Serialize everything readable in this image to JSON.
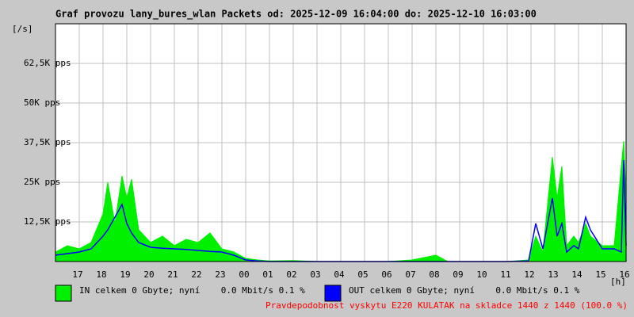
{
  "chart_data": {
    "type": "area",
    "title": "Graf provozu lany_bures_wlan Packets od: 2025-12-09 16:04:00 do: 2025-12-10 16:03:00",
    "y_unit": "[/s]",
    "x_unit": "[h]",
    "xlim": [
      0,
      24
    ],
    "xticks": [
      {
        "value": 1,
        "label": "17"
      },
      {
        "value": 2,
        "label": "18"
      },
      {
        "value": 3,
        "label": "19"
      },
      {
        "value": 4,
        "label": "20"
      },
      {
        "value": 5,
        "label": "21"
      },
      {
        "value": 6,
        "label": "22"
      },
      {
        "value": 7,
        "label": "23"
      },
      {
        "value": 8,
        "label": "00"
      },
      {
        "value": 9,
        "label": "01"
      },
      {
        "value": 10,
        "label": "02"
      },
      {
        "value": 11,
        "label": "03"
      },
      {
        "value": 12,
        "label": "04"
      },
      {
        "value": 13,
        "label": "05"
      },
      {
        "value": 14,
        "label": "06"
      },
      {
        "value": 15,
        "label": "07"
      },
      {
        "value": 16,
        "label": "08"
      },
      {
        "value": 17,
        "label": "09"
      },
      {
        "value": 18,
        "label": "10"
      },
      {
        "value": 19,
        "label": "11"
      },
      {
        "value": 20,
        "label": "12"
      },
      {
        "value": 21,
        "label": "13"
      },
      {
        "value": 22,
        "label": "14"
      },
      {
        "value": 23,
        "label": "15"
      },
      {
        "value": 24,
        "label": "16"
      }
    ],
    "ylim": [
      0,
      75000
    ],
    "yticks": [
      {
        "value": 12500,
        "label": "12,5K pps"
      },
      {
        "value": 25000,
        "label": "25K pps"
      },
      {
        "value": 37500,
        "label": "37,5K pps"
      },
      {
        "value": 50000,
        "label": "50K pps"
      },
      {
        "value": 62500,
        "label": "62,5K pps"
      }
    ],
    "grid": true,
    "x": [
      0,
      0.5,
      1,
      1.5,
      2,
      2.2,
      2.5,
      2.8,
      3,
      3.2,
      3.5,
      4,
      4.5,
      5,
      5.5,
      6,
      6.5,
      7,
      7.5,
      8,
      8.5,
      9,
      10,
      11,
      12,
      13,
      14,
      15,
      16,
      16.5,
      17,
      18,
      19,
      19.9,
      20.2,
      20.5,
      20.9,
      21.1,
      21.3,
      21.5,
      21.8,
      22,
      22.3,
      22.5,
      23,
      23.5,
      23.8,
      23.9,
      24
    ],
    "series": [
      {
        "name": "IN celkem 0 Gbyte; nyní    0.0 Mbit/s 0.1 %",
        "color": "#00f000",
        "values": [
          3000,
          5000,
          4000,
          6000,
          15000,
          25000,
          12000,
          27000,
          20000,
          26000,
          10000,
          6000,
          8000,
          5000,
          7000,
          6000,
          9000,
          4000,
          3000,
          1000,
          500,
          200,
          300,
          0,
          0,
          0,
          0,
          500,
          2000,
          0,
          0,
          0,
          0,
          500,
          8000,
          3000,
          33000,
          20000,
          30000,
          5000,
          8000,
          6000,
          12000,
          8000,
          5000,
          5000,
          30000,
          38000,
          20000
        ]
      },
      {
        "name": "OUT celkem 0 Gbyte; nyní    0.0 Mbit/s 0.1 %",
        "color": "#0000ff",
        "values": [
          2000,
          2500,
          3000,
          4000,
          8000,
          10000,
          14000,
          18000,
          12000,
          9000,
          6000,
          4500,
          4200,
          4000,
          3800,
          3500,
          3200,
          3000,
          2000,
          500,
          200,
          0,
          0,
          0,
          0,
          0,
          0,
          0,
          0,
          0,
          0,
          0,
          0,
          200,
          12000,
          4000,
          20000,
          8000,
          12000,
          3000,
          5000,
          4000,
          14000,
          10000,
          4000,
          4000,
          3000,
          32000,
          5000
        ]
      }
    ],
    "note": "Pravdepodobnost vyskytu E220 KULATAK na skladce 1440 z 1440 (100.0 %)"
  }
}
